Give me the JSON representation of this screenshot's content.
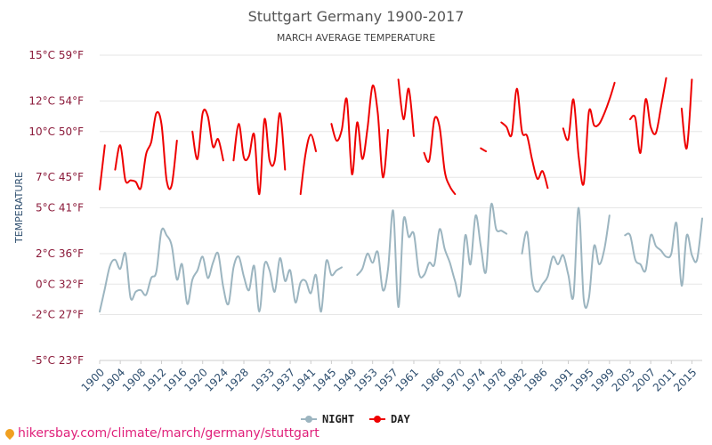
{
  "chart_data": {
    "type": "line",
    "title": "Stuttgart Germany 1900-2017",
    "subtitle": "MARCH AVERAGE TEMPERATURE",
    "ylabel": "TEMPERATURE",
    "y_ticks": [
      {
        "value": -5,
        "label": "-5°C 23°F"
      },
      {
        "value": -2,
        "label": "-2°C 27°F"
      },
      {
        "value": 0,
        "label": "0°C 32°F"
      },
      {
        "value": 2,
        "label": "2°C 36°F"
      },
      {
        "value": 5,
        "label": "5°C 41°F"
      },
      {
        "value": 7,
        "label": "7°C 45°F"
      },
      {
        "value": 10,
        "label": "10°C 50°F"
      },
      {
        "value": 12,
        "label": "12°C 54°F"
      },
      {
        "value": 15,
        "label": "15°C 59°F"
      }
    ],
    "x_ticks": [
      "1900",
      "1904",
      "1908",
      "1912",
      "1916",
      "1920",
      "1924",
      "1928",
      "1933",
      "1937",
      "1941",
      "1945",
      "1949",
      "1953",
      "1957",
      "1961",
      "1966",
      "1970",
      "1974",
      "1978",
      "1982",
      "1986",
      "1991",
      "1995",
      "1999",
      "2003",
      "2007",
      "2011",
      "2015"
    ],
    "xlim": [
      1900,
      2017
    ],
    "series": [
      {
        "name": "NIGHT",
        "color": "#9cb5c0",
        "segments": [
          {
            "start": 1900,
            "values": [
              -1.8,
              -0.3,
              1.2,
              1.6,
              1.0,
              2.0,
              -0.9,
              -0.5,
              -0.4,
              -0.7,
              0.4,
              0.8,
              3.5,
              3.2,
              2.5,
              0.3,
              1.3,
              -1.3,
              0.3,
              0.9,
              1.8,
              0.4,
              1.4,
              2.0,
              -0.2,
              -1.3,
              1.1,
              1.8,
              0.5,
              -0.4,
              1.2,
              -1.8,
              1.3,
              0.9,
              -0.5,
              1.7,
              0.2,
              0.9,
              -1.2,
              0.1,
              0.2,
              -0.6,
              0.6,
              -1.8,
              1.5,
              0.6,
              0.9,
              1.1
            ]
          },
          {
            "start": 1950,
            "values": [
              0.6,
              1.0,
              2.0,
              1.4,
              2.1,
              -0.4,
              1.0,
              4.8,
              -1.5,
              4.2,
              3.1,
              3.3,
              0.7,
              0.6,
              1.4,
              1.3,
              3.6,
              2.3,
              1.4,
              0.2,
              -0.7,
              3.2,
              1.3,
              4.5,
              2.5,
              0.8,
              5.2,
              3.6,
              3.5,
              3.3
            ]
          },
          {
            "start": 1982,
            "values": [
              2.0,
              3.4,
              0.2,
              -0.5,
              0.0,
              0.5,
              1.8,
              1.3,
              1.9,
              0.6,
              -0.8,
              5.0,
              -1.0,
              -0.9,
              2.5,
              1.3,
              2.3,
              4.5
            ]
          },
          {
            "start": 2002,
            "values": [
              3.2,
              3.2,
              1.6,
              1.3,
              0.9,
              3.2,
              2.5,
              2.2,
              1.8,
              2.0,
              4.0,
              -0.1,
              3.2,
              1.9,
              1.6,
              4.3
            ]
          }
        ]
      },
      {
        "name": "DAY",
        "color": "#ee0000",
        "segments": [
          {
            "start": 1900,
            "values": [
              6.2,
              9.1
            ]
          },
          {
            "start": 1903,
            "values": [
              7.5,
              9.1,
              6.8,
              6.8,
              6.7,
              6.3,
              8.5,
              9.3,
              11.2,
              10.5,
              6.8,
              6.5,
              9.4
            ]
          },
          {
            "start": 1918,
            "values": [
              10.0,
              8.2,
              11.2,
              11.0,
              9.0,
              9.5,
              8.1
            ]
          },
          {
            "start": 1926,
            "values": [
              8.1,
              10.5,
              8.3,
              8.4,
              9.8,
              5.9,
              10.8,
              8.1,
              8.1,
              11.2,
              7.5
            ]
          },
          {
            "start": 1939,
            "values": [
              5.9,
              8.6,
              9.8,
              8.7
            ]
          },
          {
            "start": 1945,
            "values": [
              10.5,
              9.4,
              10.1,
              12.1,
              7.2,
              10.6,
              8.2,
              10.2,
              13.0,
              11.2,
              7.0,
              10.1
            ]
          },
          {
            "start": 1958,
            "values": [
              13.4,
              10.8,
              12.8,
              9.7
            ]
          },
          {
            "start": 1963,
            "values": [
              8.6,
              8.1,
              10.8,
              10.3,
              7.4,
              6.4,
              5.9
            ]
          },
          {
            "start": 1974,
            "values": [
              8.9,
              8.7
            ]
          },
          {
            "start": 1978,
            "values": [
              10.6,
              10.3,
              9.8,
              12.8,
              10.0,
              9.7,
              8.1,
              6.9,
              7.4,
              6.3
            ]
          },
          {
            "start": 1990,
            "values": [
              10.2,
              9.5,
              12.1,
              8.4,
              6.6,
              11.3,
              10.4,
              10.5,
              11.2,
              12.1,
              13.2
            ]
          },
          {
            "start": 2003,
            "values": [
              10.8,
              10.9,
              8.6,
              12.1,
              10.3,
              9.9,
              11.6,
              13.5
            ]
          },
          {
            "start": 2013,
            "values": [
              11.5,
              8.9,
              13.4
            ]
          }
        ]
      }
    ]
  },
  "legend": [
    {
      "label": "NIGHT",
      "color": "#9cb5c0"
    },
    {
      "label": "DAY",
      "color": "#ee0000"
    }
  ],
  "footer": {
    "text": "hikersbay.com/climate/march/germany/stuttgart"
  }
}
